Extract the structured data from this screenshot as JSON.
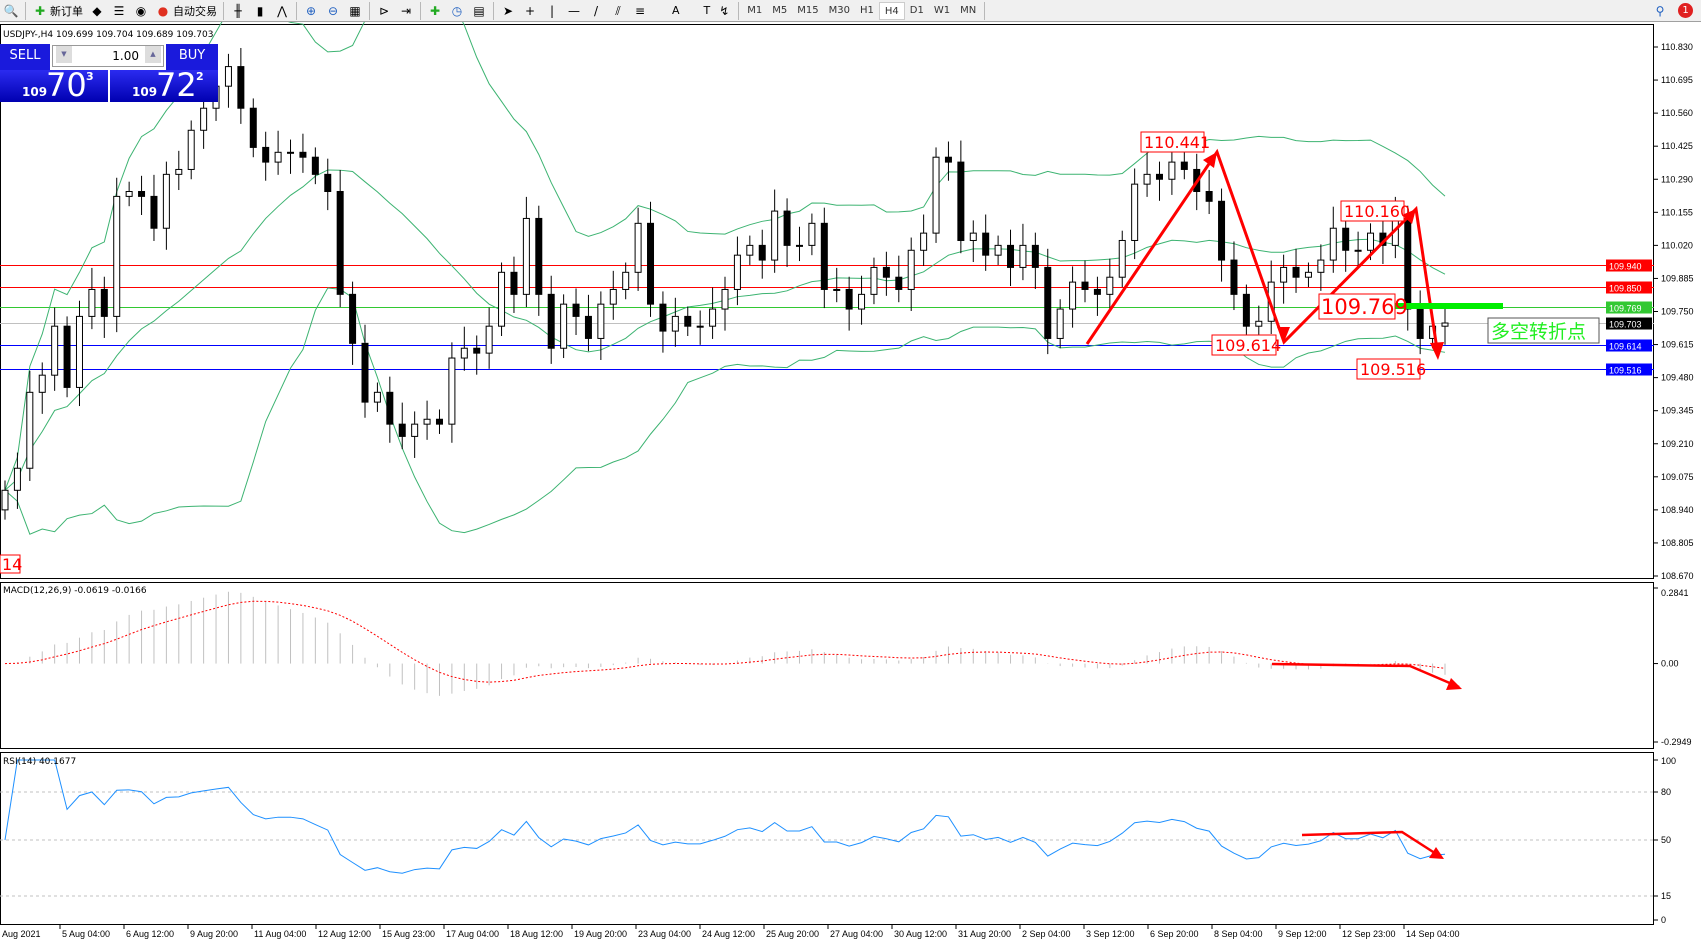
{
  "toolbar": {
    "items": [
      {
        "icon": "search-icon",
        "label": ""
      },
      {
        "icon": "new-order-icon",
        "label": "新订单"
      },
      {
        "icon": "metaeditor-icon",
        "label": ""
      },
      {
        "icon": "navigator-icon",
        "label": ""
      },
      {
        "icon": "signal-icon",
        "label": ""
      },
      {
        "icon": "auto-trading-icon",
        "label": "自动交易"
      },
      {
        "icon": "bar-chart-icon",
        "label": ""
      },
      {
        "icon": "candlestick-icon",
        "label": ""
      },
      {
        "icon": "line-chart-icon",
        "label": ""
      },
      {
        "icon": "zoom-in-icon",
        "label": ""
      },
      {
        "icon": "zoom-out-icon",
        "label": ""
      },
      {
        "icon": "tile-windows-icon",
        "label": ""
      },
      {
        "icon": "chart-shift-icon",
        "label": ""
      },
      {
        "icon": "autoscroll-icon",
        "label": ""
      },
      {
        "icon": "indicators-icon",
        "label": ""
      },
      {
        "icon": "periods-icon",
        "label": ""
      },
      {
        "icon": "templates-icon",
        "label": ""
      },
      {
        "icon": "cursor-icon",
        "label": ""
      },
      {
        "icon": "crosshair-icon",
        "label": ""
      },
      {
        "icon": "vertical-line-icon",
        "label": ""
      },
      {
        "icon": "horizontal-line-icon",
        "label": ""
      },
      {
        "icon": "trendline-icon",
        "label": ""
      },
      {
        "icon": "equidistant-channel-icon",
        "label": ""
      },
      {
        "icon": "fibonacci-icon",
        "label": ""
      },
      {
        "icon": "text-icon",
        "label": "A"
      },
      {
        "icon": "text-label-icon",
        "label": "T"
      },
      {
        "icon": "arrows-icon",
        "label": ""
      }
    ],
    "timeframes": [
      "M1",
      "M5",
      "M15",
      "M30",
      "H1",
      "H4",
      "D1",
      "W1",
      "MN"
    ],
    "active_timeframe": "H4",
    "notification_count": "1"
  },
  "symbol_info": "USDJPY-,H4  109.699 109.704 109.689 109.703",
  "trade_panel": {
    "sell_label": "SELL",
    "buy_label": "BUY",
    "lot": "1.00",
    "sell": {
      "big": "109",
      "main": "70",
      "sup": "3"
    },
    "buy": {
      "big": "109",
      "main": "72",
      "sup": "2"
    }
  },
  "price_axis": [
    "110.830",
    "110.695",
    "110.560",
    "110.425",
    "110.290",
    "110.155",
    "110.020",
    "109.885",
    "109.750",
    "109.615",
    "109.480",
    "109.345",
    "109.210",
    "109.075",
    "108.940",
    "108.805",
    "108.670"
  ],
  "levels": [
    {
      "price": "109.940",
      "color": "#ff0000"
    },
    {
      "price": "109.850",
      "color": "#ff0000"
    },
    {
      "price": "109.769",
      "color": "#32c832"
    },
    {
      "price": "109.703",
      "color": "#000000",
      "line": "#c0c0c0"
    },
    {
      "price": "109.614",
      "color": "#0000ff"
    },
    {
      "price": "109.516",
      "color": "#0000ff"
    }
  ],
  "annotations": {
    "peak1": "110.441",
    "peak2": "110.160",
    "pivot": "109.769",
    "trough1": "109.614",
    "low": "109.516",
    "left_label": "14",
    "note": "多空转折点"
  },
  "macd": {
    "label": "MACD(12,26,9) -0.0619 -0.0166",
    "ticks": [
      "0.2841",
      "0.00",
      "-0.2949"
    ]
  },
  "rsi": {
    "label": "RSI(14) 40.1677",
    "ticks": [
      "100",
      "80",
      "50",
      "15",
      "0"
    ]
  },
  "time_axis": [
    "Aug 2021",
    "5 Aug 04:00",
    "6 Aug 12:00",
    "9 Aug 20:00",
    "11 Aug 04:00",
    "12 Aug 12:00",
    "15 Aug 23:00",
    "17 Aug 04:00",
    "18 Aug 12:00",
    "19 Aug 20:00",
    "23 Aug 04:00",
    "24 Aug 12:00",
    "25 Aug 20:00",
    "27 Aug 04:00",
    "30 Aug 12:00",
    "31 Aug 20:00",
    "2 Sep 04:00",
    "3 Sep 12:00",
    "6 Sep 20:00",
    "8 Sep 04:00",
    "9 Sep 12:00",
    "12 Sep 23:00",
    "14 Sep 04:00"
  ],
  "colors": {
    "bands": "#3cb371",
    "arrow": "#ff0000",
    "rsi": "#1e90ff",
    "macd_signal": "#ff0000",
    "macd_hist": "#c0c0c0",
    "pivot_bar": "#00ee00"
  },
  "chart_data": {
    "type": "candlestick",
    "symbol": "USDJPY",
    "timeframe": "H4",
    "ylim": [
      108.67,
      110.83
    ],
    "closes": [
      109.02,
      109.11,
      109.42,
      109.49,
      109.69,
      109.44,
      109.73,
      109.84,
      109.73,
      110.22,
      110.24,
      110.22,
      110.09,
      110.31,
      110.33,
      110.49,
      110.58,
      110.67,
      110.75,
      110.58,
      110.42,
      110.36,
      110.4,
      110.4,
      110.38,
      110.31,
      110.24,
      109.82,
      109.62,
      109.38,
      109.42,
      109.29,
      109.24,
      109.29,
      109.31,
      109.29,
      109.56,
      109.6,
      109.58,
      109.69,
      109.91,
      109.82,
      110.13,
      109.82,
      109.6,
      109.78,
      109.73,
      109.64,
      109.78,
      109.84,
      109.91,
      110.11,
      109.78,
      109.67,
      109.73,
      109.69,
      109.69,
      109.76,
      109.84,
      109.98,
      110.02,
      109.96,
      110.16,
      110.02,
      110.02,
      110.11,
      109.84,
      109.84,
      109.76,
      109.82,
      109.93,
      109.89,
      109.84,
      110.0,
      110.07,
      110.38,
      110.36,
      110.04,
      110.07,
      109.98,
      110.02,
      109.93,
      110.02,
      109.93,
      109.64,
      109.76,
      109.87,
      109.84,
      109.82,
      109.89,
      110.04,
      110.27,
      110.31,
      110.29,
      110.36,
      110.33,
      110.24,
      110.2,
      109.96,
      109.82,
      109.69,
      109.71,
      109.87,
      109.93,
      109.89,
      109.91,
      109.96,
      110.09,
      110.0,
      110.0,
      110.07,
      110.02,
      110.13,
      109.76,
      109.64,
      109.69,
      109.703
    ]
  }
}
